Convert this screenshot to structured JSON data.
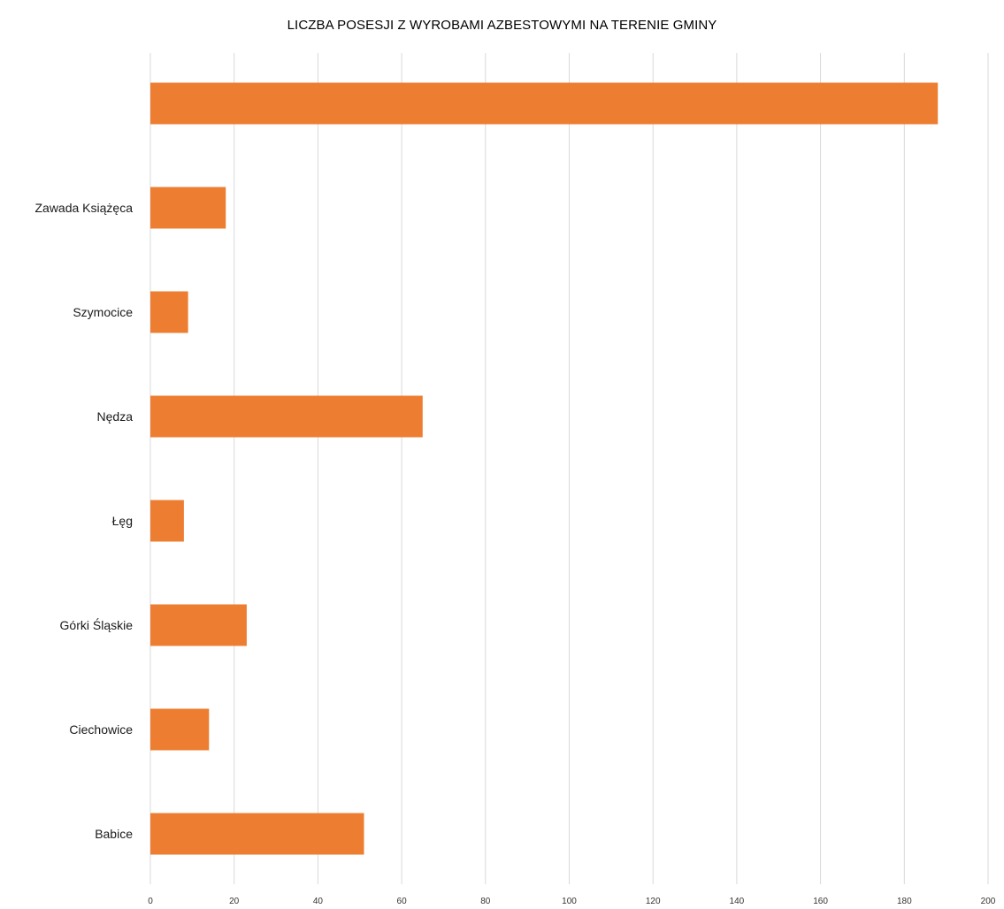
{
  "chart_data": {
    "type": "bar",
    "orientation": "horizontal",
    "title": "LICZBA POSESJI Z WYROBAMI AZBESTOWYMI NA TERENIE GMINY",
    "categories": [
      "",
      "Zawada Książęca",
      "Szymocice",
      "Nędza",
      "Łęg",
      "Górki Śląskie",
      "Ciechowice",
      "Babice"
    ],
    "values": [
      188,
      18,
      9,
      65,
      8,
      23,
      14,
      51
    ],
    "xlim": [
      0,
      200
    ],
    "xticks": [
      0,
      20,
      40,
      60,
      80,
      100,
      120,
      140,
      160,
      180,
      200
    ],
    "grid": true,
    "bar_color": "#ED7D31",
    "grid_color": "#D9D9D9"
  }
}
